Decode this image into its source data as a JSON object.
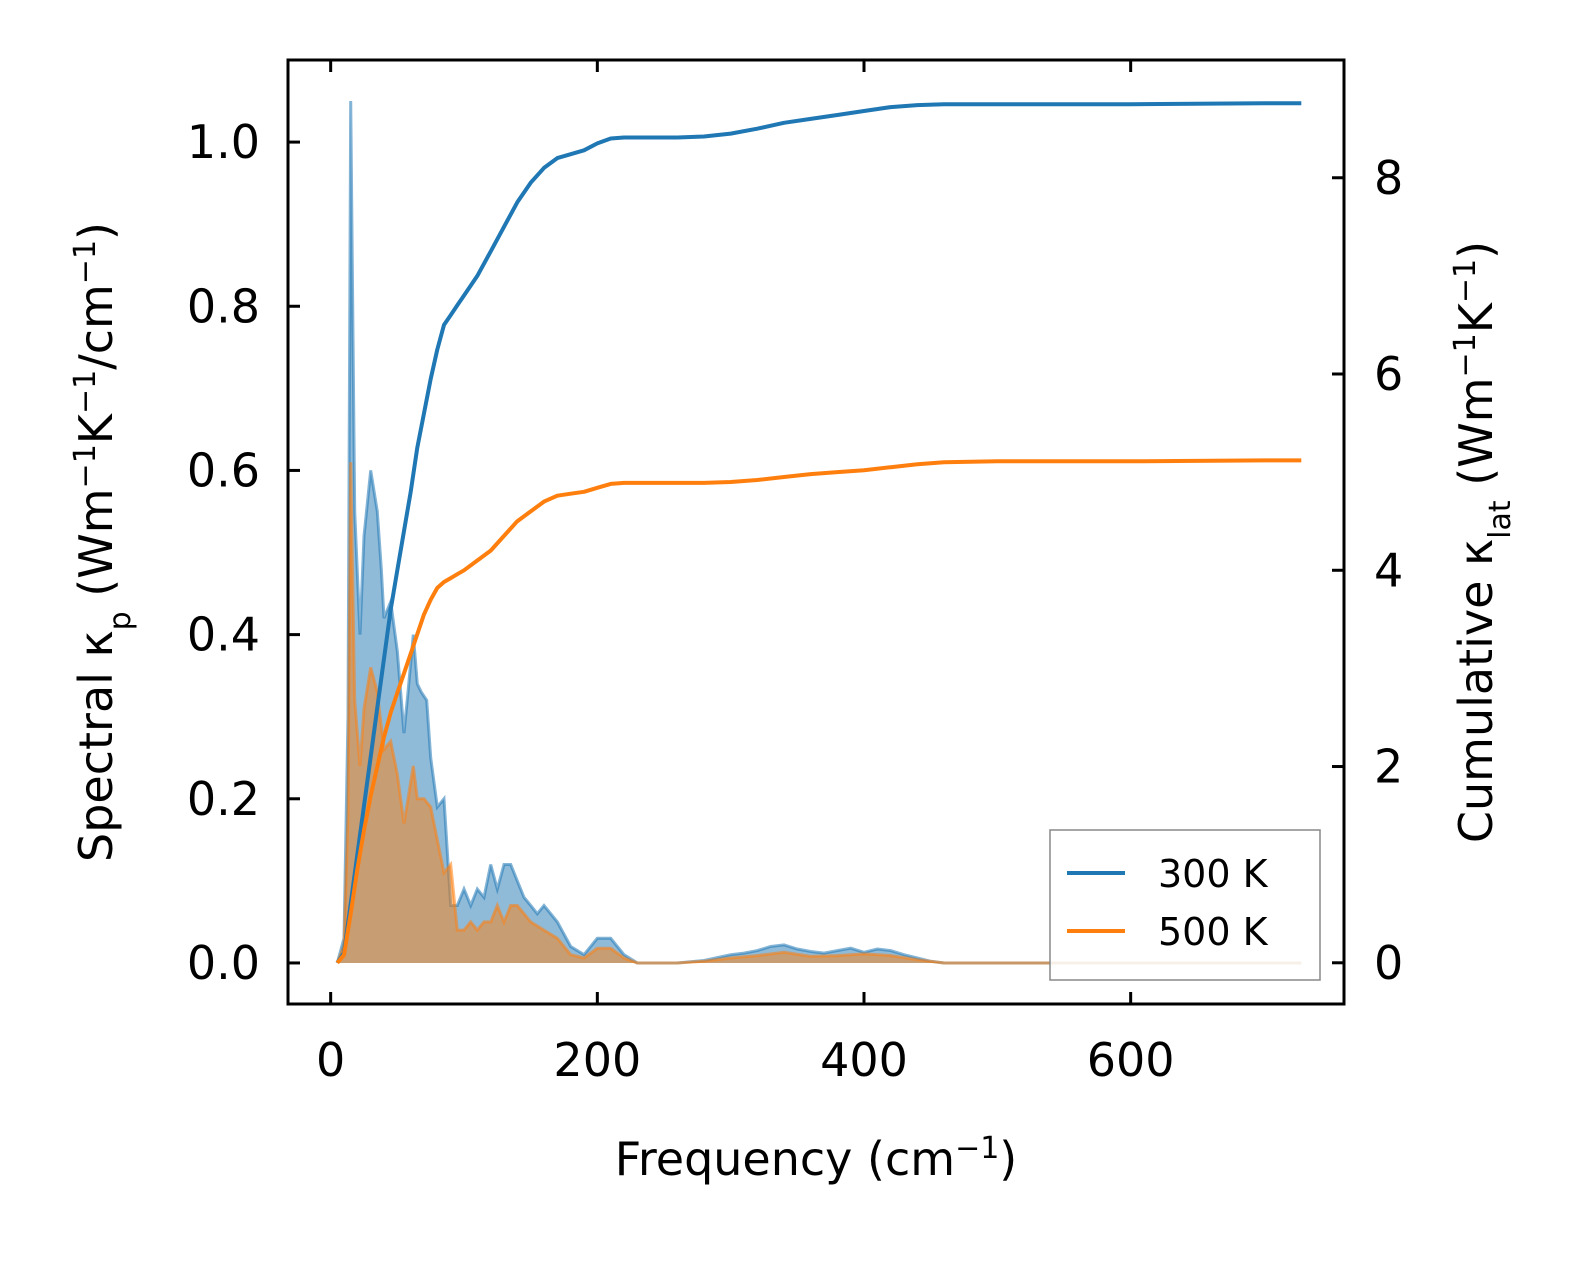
{
  "chart_data": {
    "type": "line",
    "x_label": "Frequency (cm",
    "x_label_sup": "−1",
    "x_label_end": ")",
    "y_left_label_main": "Spectral κ",
    "y_left_label_sub": "p",
    "y_left_label_units": " (Wm",
    "y_left_label_sup1": "−1",
    "y_left_label_mid": "K",
    "y_left_label_sup2": "−1",
    "y_left_label_mid2": "/cm",
    "y_left_label_sup3": "−1",
    "y_left_label_end": ")",
    "y_right_label_main": "Cumulative κ",
    "y_right_label_sub": "lat",
    "y_right_label_units": " (Wm",
    "y_right_label_sup1": "−1",
    "y_right_label_mid": "K",
    "y_right_label_sup2": "−1",
    "y_right_label_end": ")",
    "xlim": [
      -32,
      760
    ],
    "ylim_left": [
      -0.05,
      1.1
    ],
    "ylim_right": [
      -0.42,
      9.2
    ],
    "x_ticks": [
      0,
      200,
      400,
      600
    ],
    "x_tick_labels": [
      "0",
      "200",
      "400",
      "600"
    ],
    "y_left_ticks": [
      0.0,
      0.2,
      0.4,
      0.6,
      0.8,
      1.0
    ],
    "y_left_tick_labels": [
      "0.0",
      "0.2",
      "0.4",
      "0.6",
      "0.8",
      "1.0"
    ],
    "y_right_ticks": [
      0,
      2,
      4,
      6,
      8
    ],
    "y_right_tick_labels": [
      "0",
      "2",
      "4",
      "6",
      "8"
    ],
    "legend_position": "lower-right",
    "legend": [
      {
        "label": "300 K",
        "color": "#1f77b4"
      },
      {
        "label": "500 K",
        "color": "#ff7f0e"
      }
    ],
    "colors": {
      "blue": "#1f77b4",
      "orange": "#ff7f0e",
      "blue_fill": "#1f77b4",
      "orange_fill": "#ff7f0e"
    },
    "spectral_300K": {
      "x": [
        5,
        10,
        13,
        15,
        18,
        22,
        25,
        30,
        35,
        38,
        40,
        45,
        50,
        55,
        58,
        62,
        65,
        68,
        72,
        75,
        80,
        85,
        90,
        95,
        100,
        105,
        110,
        115,
        120,
        125,
        130,
        135,
        140,
        145,
        150,
        155,
        160,
        170,
        180,
        190,
        200,
        210,
        220,
        230,
        260,
        280,
        300,
        310,
        320,
        330,
        340,
        350,
        360,
        370,
        380,
        390,
        400,
        410,
        420,
        430,
        440,
        450,
        460,
        500,
        600,
        700,
        728
      ],
      "y": [
        0.0,
        0.03,
        0.3,
        1.05,
        0.55,
        0.4,
        0.52,
        0.6,
        0.55,
        0.48,
        0.42,
        0.44,
        0.38,
        0.28,
        0.33,
        0.4,
        0.34,
        0.33,
        0.32,
        0.25,
        0.19,
        0.2,
        0.07,
        0.07,
        0.09,
        0.07,
        0.09,
        0.08,
        0.12,
        0.09,
        0.12,
        0.12,
        0.1,
        0.08,
        0.07,
        0.06,
        0.07,
        0.05,
        0.02,
        0.01,
        0.03,
        0.03,
        0.01,
        0.0,
        0.0,
        0.003,
        0.01,
        0.012,
        0.015,
        0.02,
        0.022,
        0.017,
        0.014,
        0.012,
        0.015,
        0.018,
        0.013,
        0.017,
        0.015,
        0.01,
        0.006,
        0.002,
        0.0,
        0.0,
        0.0,
        0.0,
        0.0
      ]
    },
    "spectral_500K": {
      "x": [
        5,
        10,
        13,
        15,
        18,
        22,
        25,
        30,
        35,
        40,
        45,
        50,
        55,
        58,
        62,
        65,
        70,
        75,
        80,
        85,
        90,
        95,
        100,
        105,
        110,
        115,
        120,
        125,
        130,
        135,
        140,
        145,
        150,
        160,
        170,
        180,
        190,
        200,
        210,
        220,
        230,
        260,
        280,
        300,
        320,
        340,
        360,
        380,
        400,
        420,
        440,
        460,
        500,
        600,
        700,
        728
      ],
      "y": [
        0.0,
        0.02,
        0.18,
        0.61,
        0.32,
        0.24,
        0.31,
        0.36,
        0.33,
        0.26,
        0.27,
        0.23,
        0.17,
        0.2,
        0.24,
        0.2,
        0.2,
        0.19,
        0.15,
        0.11,
        0.12,
        0.04,
        0.04,
        0.05,
        0.04,
        0.05,
        0.05,
        0.07,
        0.05,
        0.07,
        0.07,
        0.06,
        0.05,
        0.04,
        0.03,
        0.01,
        0.006,
        0.018,
        0.018,
        0.006,
        0.0,
        0.0,
        0.002,
        0.006,
        0.009,
        0.013,
        0.008,
        0.009,
        0.011,
        0.009,
        0.004,
        0.0,
        0.0,
        0.0,
        0.0,
        0.0
      ]
    },
    "cumulative_300K": {
      "x": [
        5,
        10,
        15,
        20,
        25,
        30,
        35,
        40,
        45,
        50,
        55,
        60,
        65,
        70,
        75,
        80,
        85,
        90,
        95,
        100,
        110,
        120,
        130,
        140,
        150,
        160,
        170,
        180,
        190,
        200,
        210,
        220,
        240,
        260,
        280,
        300,
        320,
        340,
        360,
        380,
        400,
        420,
        440,
        460,
        500,
        600,
        700,
        728
      ],
      "y": [
        0.0,
        0.1,
        0.6,
        1.1,
        1.6,
        2.1,
        2.6,
        3.1,
        3.6,
        4.0,
        4.4,
        4.8,
        5.25,
        5.6,
        5.95,
        6.25,
        6.5,
        6.6,
        6.7,
        6.8,
        7.0,
        7.25,
        7.5,
        7.75,
        7.95,
        8.1,
        8.2,
        8.24,
        8.28,
        8.35,
        8.4,
        8.41,
        8.41,
        8.41,
        8.42,
        8.45,
        8.5,
        8.56,
        8.6,
        8.64,
        8.68,
        8.72,
        8.74,
        8.75,
        8.75,
        8.75,
        8.76,
        8.76
      ]
    },
    "cumulative_500K": {
      "x": [
        5,
        10,
        15,
        20,
        25,
        30,
        35,
        40,
        45,
        50,
        55,
        60,
        65,
        70,
        75,
        80,
        85,
        90,
        95,
        100,
        110,
        120,
        130,
        140,
        150,
        160,
        170,
        180,
        190,
        200,
        210,
        220,
        240,
        260,
        280,
        300,
        320,
        340,
        360,
        380,
        400,
        420,
        440,
        460,
        500,
        600,
        700,
        728
      ],
      "y": [
        0.0,
        0.08,
        0.5,
        0.95,
        1.35,
        1.7,
        2.0,
        2.3,
        2.55,
        2.75,
        2.95,
        3.15,
        3.35,
        3.55,
        3.7,
        3.82,
        3.88,
        3.92,
        3.96,
        4.0,
        4.1,
        4.2,
        4.35,
        4.5,
        4.6,
        4.7,
        4.76,
        4.78,
        4.8,
        4.84,
        4.88,
        4.89,
        4.89,
        4.89,
        4.89,
        4.9,
        4.92,
        4.95,
        4.98,
        5.0,
        5.02,
        5.05,
        5.08,
        5.1,
        5.11,
        5.11,
        5.12,
        5.12
      ]
    }
  }
}
